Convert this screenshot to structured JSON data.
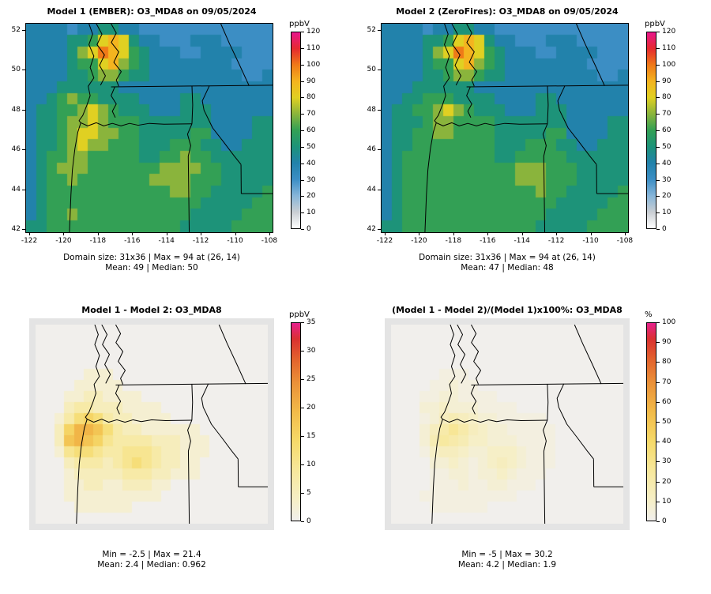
{
  "chart_data": [
    {
      "type": "heatmap",
      "title": "Model 1 (EMBER): O3_MDA8 on 09/05/2024",
      "unit": "ppbV",
      "vmax": 120,
      "colorbar_ticks": [
        0,
        10,
        20,
        30,
        40,
        50,
        60,
        70,
        80,
        90,
        100,
        110,
        120
      ],
      "palette": "conc",
      "x_ticks": [
        "-122",
        "-120",
        "-118",
        "-116",
        "-114",
        "-112",
        "-110",
        "-108"
      ],
      "y_ticks": [
        "52",
        "50",
        "48",
        "46",
        "44",
        "42"
      ],
      "x_range": [
        -122,
        -108
      ],
      "y_range": [
        52,
        42
      ],
      "stats": {
        "domain_size": "31x36",
        "max": 94,
        "max_at": [
          26,
          14
        ],
        "mean": 49,
        "median": 50
      },
      "stats_line1": "Domain size: 31x36 | Max = 94 at (26, 14)",
      "stats_line2": "Mean: 49 |  Median: 50",
      "char_step": 10,
      "grid": [
        "444434455443333333333333",
        "444455689854433344433333",
        "4444578a9865444334444333",
        "444456689765444444443333",
        "444455677655444444444334",
        "444555555444444444444444",
        "445676655554444554444444",
        "455667876555444555444444",
        "455677876665555555444455",
        "455678877665555566444455",
        "455678776665556665544555",
        "456677666665566766555555",
        "456777666666677776655555",
        "456676666666777766655555",
        "456666666666667766555556",
        "456666666666666665555566",
        "456676666666666655555666",
        "556666666666666555556666"
      ]
    },
    {
      "type": "heatmap",
      "title": "Model 2 (ZeroFires): O3_MDA8 on 09/05/2024",
      "unit": "ppbV",
      "vmax": 120,
      "colorbar_ticks": [
        0,
        10,
        20,
        30,
        40,
        50,
        60,
        70,
        80,
        90,
        100,
        110,
        120
      ],
      "palette": "conc",
      "x_ticks": [
        "-122",
        "-120",
        "-118",
        "-116",
        "-114",
        "-112",
        "-110",
        "-108"
      ],
      "y_ticks": [
        "52",
        "50",
        "48",
        "46",
        "44",
        "42"
      ],
      "x_range": [
        -122,
        -108
      ],
      "y_range": [
        52,
        42
      ],
      "stats": {
        "domain_size": "31x36",
        "max": 94,
        "max_at": [
          26,
          14
        ],
        "mean": 47,
        "median": 48
      },
      "stats_line1": "Domain size: 31x36 | Max = 94 at (26, 14)",
      "stats_line2": "Mean: 47 |  Median: 48",
      "char_step": 10,
      "grid": [
        "444434455443333333333333",
        "444455689854433344433333",
        "4444578a9865444334444333",
        "444456689765444444443333",
        "444455677655444444444334",
        "444555555444444444444444",
        "445566655554444554444444",
        "455667876555444555444444",
        "455567766665555555444455",
        "455667766665555566444455",
        "455666666665556665544555",
        "456666666665566666555555",
        "456666666666677766655555",
        "456666666666677766655555",
        "456666666666666766555556",
        "456666666666666665555566",
        "456666666666666655555666",
        "556666666666666555556666"
      ]
    },
    {
      "type": "heatmap",
      "title": "Model 1 - Model 2: O3_MDA8",
      "unit": "ppbV",
      "vmax": 35,
      "colorbar_ticks": [
        0,
        5,
        10,
        15,
        20,
        25,
        30,
        35
      ],
      "palette": "diff",
      "x_ticks": [],
      "y_ticks": [],
      "x_range": [
        -122,
        -108
      ],
      "y_range": [
        52,
        42
      ],
      "stats": {
        "min": -2.5,
        "max": 21.4,
        "mean": 2.4,
        "median": 0.962
      },
      "stats_line1": "Min = -2.5 | Max = 21.4",
      "stats_line2": "Mean: 2.4 |  Median: 0.962",
      "char_step": 2.5,
      "grid": [
        "000000000000000000000000",
        "000000000000000000000000",
        "000000000000000000000000",
        "000000000000000000000000",
        "000001110000000000000000",
        "000011111000000000000000",
        "000112211110000000000000",
        "000233222111100000000000",
        "001356532211110000000000",
        "002688753221111110000000",
        "002787643333222111000000",
        "001455433444322111000000",
        "000233323454322110000000",
        "000122222333221110000000",
        "000112211222110000000000",
        "000111111111100000000000",
        "000011111100000000000000",
        "000000000000000000000000"
      ]
    },
    {
      "type": "heatmap",
      "title": "(Model 1 - Model 2)/(Model 1)x100%: O3_MDA8",
      "unit": "%",
      "vmax": 100,
      "colorbar_ticks": [
        0,
        10,
        20,
        30,
        40,
        50,
        60,
        70,
        80,
        90,
        100
      ],
      "palette": "diff",
      "x_ticks": [],
      "y_ticks": [],
      "x_range": [
        -122,
        -108
      ],
      "y_range": [
        52,
        42
      ],
      "stats": {
        "min": -5,
        "max": 30.2,
        "mean": 4.2,
        "median": 1.9
      },
      "stats_line1": "Min = -5 | Max = 30.2",
      "stats_line2": "Mean: 4.2 |  Median: 1.9",
      "char_step": 3.4,
      "grid": [
        "000000000000000000000000",
        "000000000000000000000000",
        "000000000000000000000000",
        "000000000000000000000000",
        "000001110000000000000000",
        "000011211000000000000000",
        "000112211110000000000000",
        "000223222111100000000000",
        "000124543221111100000000",
        "000246864322111110000000",
        "000257653322211110000000",
        "000134432233321110000000",
        "000022321234321110000000",
        "000011221223211100000000",
        "000011121122111000000000",
        "000111111111100000000000",
        "000011111100000000000000",
        "000000000000000000000000"
      ]
    }
  ],
  "palettes": {
    "conc": {
      "stops": [
        [
          0,
          "#ffffff"
        ],
        [
          0.083,
          "#c9ced3"
        ],
        [
          0.167,
          "#86b5d9"
        ],
        [
          0.25,
          "#3c8ec4"
        ],
        [
          0.333,
          "#2282ab"
        ],
        [
          0.417,
          "#1d9379"
        ],
        [
          0.5,
          "#33a055"
        ],
        [
          0.583,
          "#8ab43c"
        ],
        [
          0.667,
          "#e0d022"
        ],
        [
          0.75,
          "#f4b41f"
        ],
        [
          0.833,
          "#ef7a18"
        ],
        [
          0.917,
          "#e62a2e"
        ],
        [
          1,
          "#e8178d"
        ]
      ]
    },
    "diff": {
      "stops": [
        [
          0,
          "#f1efec"
        ],
        [
          0.1,
          "#f6efc8"
        ],
        [
          0.25,
          "#f7e89d"
        ],
        [
          0.4,
          "#f6da6a"
        ],
        [
          0.55,
          "#f2bb49"
        ],
        [
          0.7,
          "#ea9038"
        ],
        [
          0.82,
          "#e2612d"
        ],
        [
          0.92,
          "#da3131"
        ],
        [
          1,
          "#e7218e"
        ]
      ]
    }
  },
  "outlines": [
    [
      [
        0.255,
        0
      ],
      [
        0.27,
        0.05
      ],
      [
        0.255,
        0.1
      ],
      [
        0.275,
        0.155
      ],
      [
        0.26,
        0.21
      ],
      [
        0.275,
        0.26
      ],
      [
        0.252,
        0.3
      ],
      [
        0.26,
        0.345
      ],
      [
        0.247,
        0.39
      ],
      [
        0.23,
        0.44
      ],
      [
        0.215,
        0.465
      ],
      [
        0.222,
        0.475
      ],
      [
        0.21,
        0.52
      ],
      [
        0.198,
        0.6
      ],
      [
        0.188,
        0.7
      ],
      [
        0.182,
        0.82
      ],
      [
        0.176,
        1
      ]
    ],
    [
      [
        0.285,
        0
      ],
      [
        0.308,
        0.05
      ],
      [
        0.288,
        0.1
      ],
      [
        0.318,
        0.15
      ],
      [
        0.298,
        0.2
      ],
      [
        0.322,
        0.25
      ],
      [
        0.302,
        0.295
      ]
    ],
    [
      [
        0.345,
        0
      ],
      [
        0.366,
        0.045
      ],
      [
        0.346,
        0.09
      ],
      [
        0.376,
        0.135
      ],
      [
        0.356,
        0.185
      ],
      [
        0.386,
        0.23
      ],
      [
        0.366,
        0.27
      ],
      [
        0.376,
        0.3
      ]
    ],
    [
      [
        0.36,
        0.303
      ],
      [
        0.345,
        0.345
      ],
      [
        0.366,
        0.385
      ],
      [
        0.35,
        0.42
      ],
      [
        0.362,
        0.45
      ]
    ],
    [
      [
        0.345,
        0.303
      ],
      [
        1,
        0.295
      ]
    ],
    [
      [
        0.79,
        0
      ],
      [
        0.825,
        0.095
      ],
      [
        0.865,
        0.195
      ],
      [
        0.905,
        0.298
      ]
    ],
    [
      [
        0.222,
        0.475
      ],
      [
        0.25,
        0.49
      ],
      [
        0.285,
        0.475
      ],
      [
        0.315,
        0.49
      ],
      [
        0.35,
        0.478
      ],
      [
        0.385,
        0.49
      ],
      [
        0.42,
        0.478
      ],
      [
        0.455,
        0.487
      ],
      [
        0.5,
        0.478
      ],
      [
        0.56,
        0.482
      ],
      [
        0.673,
        0.48
      ]
    ],
    [
      [
        0.673,
        0.298
      ],
      [
        0.676,
        0.39
      ],
      [
        0.673,
        0.48
      ]
    ],
    [
      [
        0.673,
        0.48
      ],
      [
        0.655,
        0.53
      ],
      [
        0.668,
        0.585
      ],
      [
        0.658,
        0.635
      ],
      [
        0.662,
        1
      ]
    ],
    [
      [
        0.744,
        0.297
      ],
      [
        0.715,
        0.37
      ],
      [
        0.722,
        0.415
      ],
      [
        0.757,
        0.5
      ],
      [
        0.8,
        0.565
      ],
      [
        0.845,
        0.635
      ],
      [
        0.872,
        0.675
      ]
    ],
    [
      [
        0.872,
        0.675
      ],
      [
        0.873,
        0.815
      ]
    ],
    [
      [
        0.873,
        0.815
      ],
      [
        1,
        0.815
      ]
    ]
  ]
}
